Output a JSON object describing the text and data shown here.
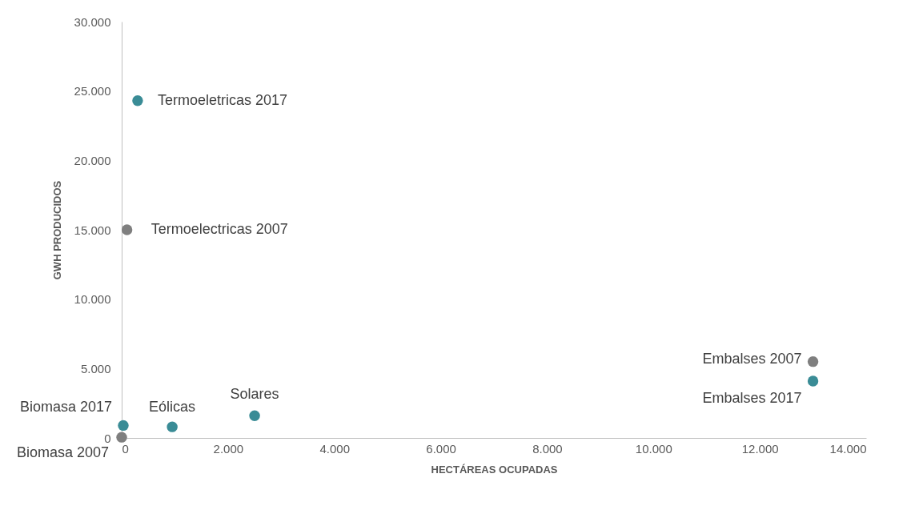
{
  "chart_data": {
    "type": "scatter",
    "xlabel": "HECTÁREAS OCUPADAS",
    "ylabel": "GWH PRODUCIDOS",
    "series": [
      {
        "color": "#3a8c96",
        "x": [
          300,
          13000,
          30,
          950,
          2500
        ],
        "values": [
          24300,
          4100,
          900,
          800,
          1600
        ]
      },
      {
        "color": "#7f7f7f",
        "x": [
          100,
          13000,
          0
        ],
        "values": [
          15000,
          5500,
          50
        ]
      }
    ],
    "xlim": [
      0,
      14000
    ],
    "ylim": [
      0,
      30000
    ],
    "xticks": [
      {
        "value": 0,
        "label": "0"
      },
      {
        "value": 2000,
        "label": "2.000"
      },
      {
        "value": 4000,
        "label": "4.000"
      },
      {
        "value": 6000,
        "label": "6.000"
      },
      {
        "value": 8000,
        "label": "8.000"
      },
      {
        "value": 10000,
        "label": "10.000"
      },
      {
        "value": 12000,
        "label": "12.000"
      },
      {
        "value": 14000,
        "label": "14.000"
      }
    ],
    "yticks": [
      {
        "value": 0,
        "label": "0"
      },
      {
        "value": 5000,
        "label": "5.000"
      },
      {
        "value": 10000,
        "label": "10.000"
      },
      {
        "value": 15000,
        "label": "15.000"
      },
      {
        "value": 20000,
        "label": "20.000"
      },
      {
        "value": 25000,
        "label": "25.000"
      },
      {
        "value": 30000,
        "label": "30.000"
      }
    ],
    "grid": false,
    "marker": "circle",
    "annotations": [
      {
        "text": "Termoeletricas 2017",
        "x": 300,
        "y": 24300
      },
      {
        "text": "Termoelectricas 2007",
        "x": 100,
        "y": 15000
      },
      {
        "text": "Embalses 2007",
        "x": 13000,
        "y": 5500
      },
      {
        "text": "Embalses 2017",
        "x": 13000,
        "y": 4100
      },
      {
        "text": "Biomasa 2017",
        "x": 30,
        "y": 900
      },
      {
        "text": "Biomasa 2007",
        "x": 0,
        "y": 50
      },
      {
        "text": "Eólicas",
        "x": 950,
        "y": 800
      },
      {
        "text": "Solares",
        "x": 2500,
        "y": 1600
      }
    ]
  }
}
